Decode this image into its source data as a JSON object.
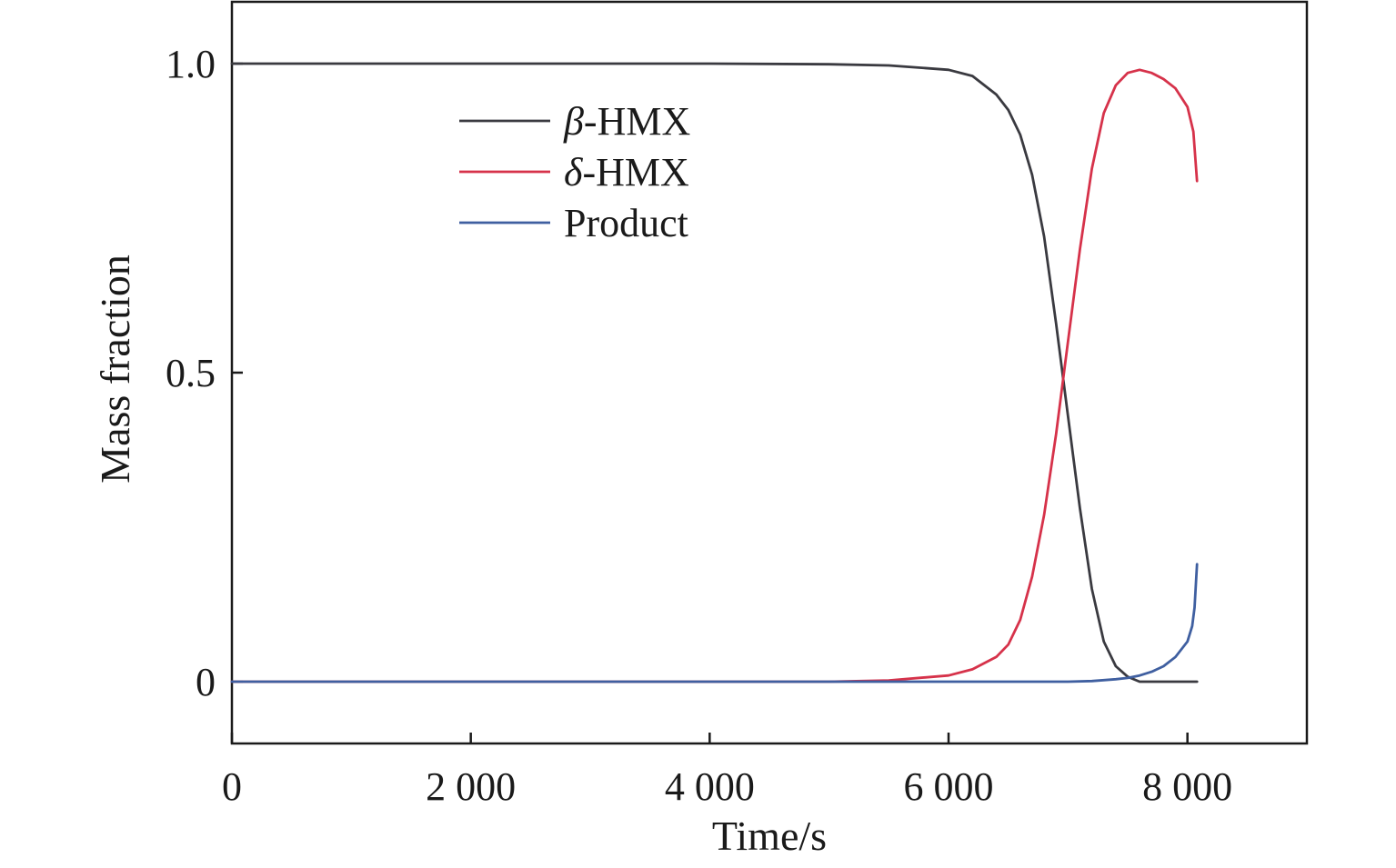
{
  "chart_data": {
    "type": "line",
    "title": "",
    "xlabel": "Time/s",
    "ylabel": "Mass fraction",
    "xlim": [
      0,
      9000
    ],
    "ylim": [
      -0.1,
      1.1
    ],
    "x_ticks": [
      0,
      2000,
      4000,
      6000,
      8000
    ],
    "x_tick_labels": [
      "0",
      "2 000",
      "4 000",
      "6 000",
      "8 000"
    ],
    "y_ticks": [
      0,
      0.5,
      1.0
    ],
    "y_tick_labels": [
      "0",
      "0.5",
      "1.0"
    ],
    "grid": false,
    "legend_position": "top-left",
    "series": [
      {
        "name": "β-HMX",
        "name_prefix": "β",
        "name_suffix": "-HMX",
        "color": "#3a3a40",
        "points": [
          [
            0,
            1.0
          ],
          [
            4000,
            1.0
          ],
          [
            5000,
            0.999
          ],
          [
            5500,
            0.997
          ],
          [
            6000,
            0.99
          ],
          [
            6200,
            0.98
          ],
          [
            6400,
            0.95
          ],
          [
            6500,
            0.925
          ],
          [
            6600,
            0.885
          ],
          [
            6700,
            0.82
          ],
          [
            6800,
            0.72
          ],
          [
            6900,
            0.58
          ],
          [
            7000,
            0.43
          ],
          [
            7100,
            0.28
          ],
          [
            7200,
            0.15
          ],
          [
            7300,
            0.065
          ],
          [
            7400,
            0.025
          ],
          [
            7500,
            0.008
          ],
          [
            7600,
            0.0
          ],
          [
            7700,
            0.0
          ],
          [
            8000,
            0.0
          ],
          [
            8080,
            0.0
          ]
        ]
      },
      {
        "name": "δ-HMX",
        "name_prefix": "δ",
        "name_suffix": "-HMX",
        "color": "#d6324a",
        "points": [
          [
            0,
            0.0
          ],
          [
            5000,
            0.0
          ],
          [
            5500,
            0.002
          ],
          [
            6000,
            0.01
          ],
          [
            6200,
            0.02
          ],
          [
            6400,
            0.04
          ],
          [
            6500,
            0.06
          ],
          [
            6600,
            0.1
          ],
          [
            6700,
            0.17
          ],
          [
            6800,
            0.27
          ],
          [
            6900,
            0.4
          ],
          [
            7000,
            0.55
          ],
          [
            7100,
            0.7
          ],
          [
            7200,
            0.83
          ],
          [
            7300,
            0.92
          ],
          [
            7400,
            0.965
          ],
          [
            7500,
            0.985
          ],
          [
            7600,
            0.99
          ],
          [
            7700,
            0.985
          ],
          [
            7800,
            0.975
          ],
          [
            7900,
            0.96
          ],
          [
            8000,
            0.93
          ],
          [
            8050,
            0.89
          ],
          [
            8080,
            0.81
          ]
        ]
      },
      {
        "name": "Product",
        "color": "#3f5fa0",
        "points": [
          [
            0,
            0.0
          ],
          [
            7000,
            0.0
          ],
          [
            7200,
            0.001
          ],
          [
            7400,
            0.004
          ],
          [
            7500,
            0.006
          ],
          [
            7600,
            0.01
          ],
          [
            7700,
            0.016
          ],
          [
            7800,
            0.025
          ],
          [
            7900,
            0.04
          ],
          [
            8000,
            0.065
          ],
          [
            8040,
            0.09
          ],
          [
            8060,
            0.12
          ],
          [
            8080,
            0.19
          ]
        ]
      }
    ]
  }
}
